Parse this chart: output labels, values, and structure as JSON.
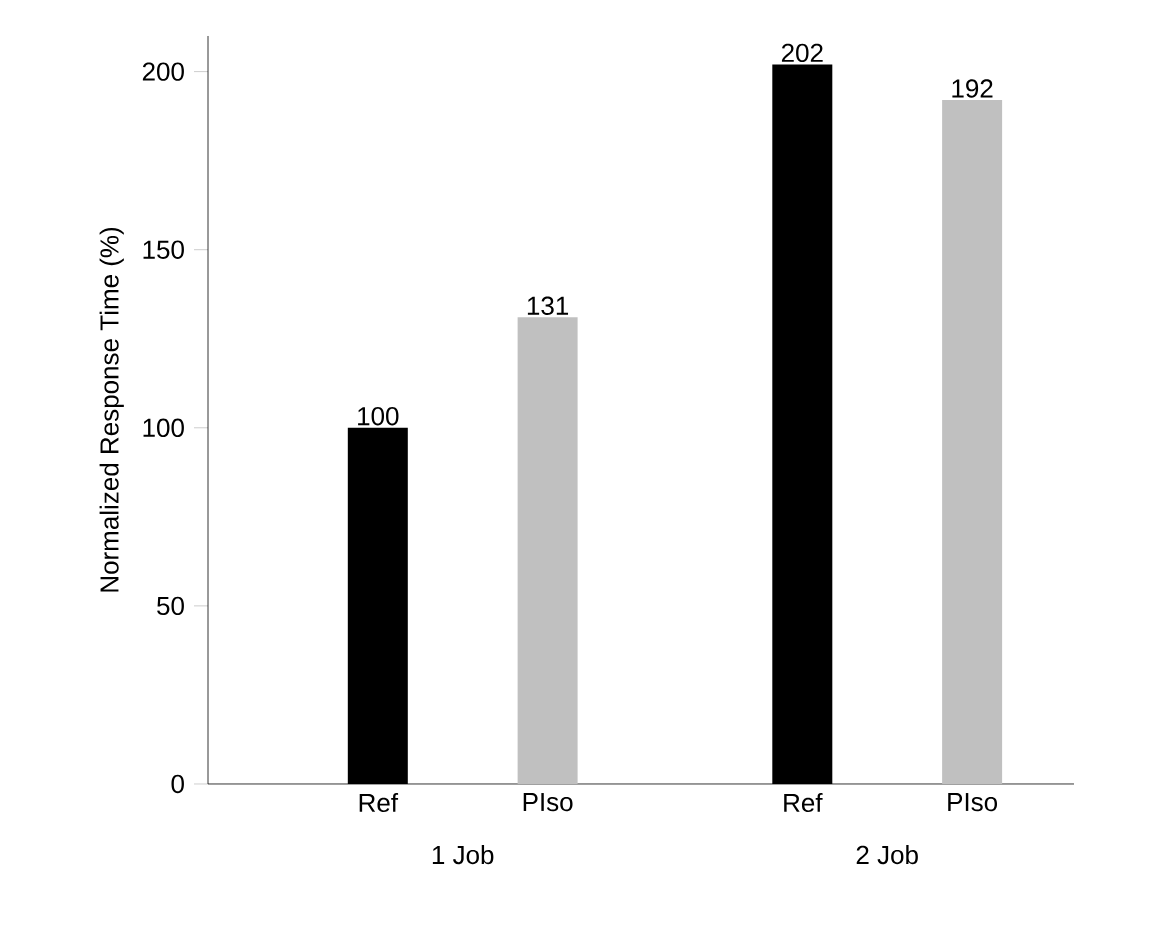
{
  "chart_data": {
    "type": "bar",
    "ylabel": "Normalized Response Time (%)",
    "categories": [
      "Ref",
      "PIso",
      "Ref",
      "PIso"
    ],
    "values": [
      100,
      131,
      202,
      192
    ],
    "colors": [
      "#000000",
      "#c0c0c0",
      "#000000",
      "#c0c0c0"
    ],
    "ylim": [
      0,
      210
    ],
    "yticks": [
      0,
      50,
      100,
      150,
      200
    ],
    "data_labels": true,
    "annotations": [
      "1 Job",
      "2 Job"
    ]
  }
}
